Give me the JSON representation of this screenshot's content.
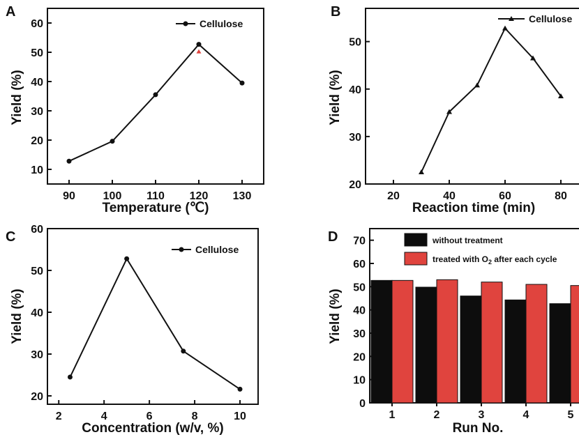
{
  "chart_data": [
    {
      "panel": "A",
      "type": "line",
      "xlabel": "Temperature (℃)",
      "ylabel": "Yield (%)",
      "xlim": [
        85,
        135
      ],
      "ylim": [
        5,
        65
      ],
      "xticks": [
        90,
        100,
        110,
        120,
        130
      ],
      "yticks": [
        10,
        20,
        30,
        40,
        50,
        60
      ],
      "legend_position": "top-right",
      "series": [
        {
          "name": "Cellulose",
          "marker": "circle",
          "x": [
            90,
            100,
            110,
            120,
            130
          ],
          "y": [
            12.8,
            19.6,
            35.5,
            52.7,
            39.5
          ]
        }
      ],
      "extra_points": [
        {
          "x": 120,
          "y": 50.2,
          "marker": "triangle",
          "color": "#e0443e"
        }
      ]
    },
    {
      "panel": "B",
      "type": "line",
      "xlabel": "Reaction time (min)",
      "ylabel": "Yield (%)",
      "xlim": [
        10,
        90
      ],
      "ylim": [
        20,
        57
      ],
      "xticks": [
        20,
        40,
        60,
        80
      ],
      "yticks": [
        20,
        30,
        40,
        50
      ],
      "legend_position": "top-right",
      "series": [
        {
          "name": "Cellulose",
          "marker": "triangle",
          "x": [
            30,
            40,
            50,
            60,
            70,
            80
          ],
          "y": [
            22.5,
            35.2,
            40.8,
            52.8,
            46.5,
            38.5
          ]
        }
      ]
    },
    {
      "panel": "C",
      "type": "line",
      "xlabel": "Concentration (w/v, %)",
      "ylabel": "Yield (%)",
      "xlim": [
        1.5,
        10.8
      ],
      "ylim": [
        18,
        60
      ],
      "xticks": [
        2,
        4,
        6,
        8,
        10
      ],
      "yticks": [
        20,
        30,
        40,
        50,
        60
      ],
      "legend_position": "top-right",
      "series": [
        {
          "name": "Cellulose",
          "marker": "circle",
          "x": [
            2.5,
            5,
            7.5,
            10
          ],
          "y": [
            24.5,
            52.8,
            30.7,
            21.6
          ]
        }
      ]
    },
    {
      "panel": "D",
      "type": "bar",
      "xlabel": "Run No.",
      "ylabel": "Yield (%)",
      "categories": [
        "1",
        "2",
        "3",
        "4",
        "5"
      ],
      "ylim": [
        0,
        75
      ],
      "yticks": [
        0,
        10,
        20,
        30,
        40,
        50,
        60,
        70
      ],
      "legend_position": "top-left",
      "series": [
        {
          "name": "without treatment",
          "color": "#0d0d0d",
          "values": [
            52.7,
            49.8,
            46.0,
            44.3,
            42.7
          ]
        },
        {
          "name": "treated with O",
          "name_subscript": "2",
          "name_suffix": " after each cycle",
          "color": "#e0443e",
          "values": [
            52.7,
            53.0,
            52.0,
            51.0,
            50.5
          ]
        }
      ]
    }
  ]
}
